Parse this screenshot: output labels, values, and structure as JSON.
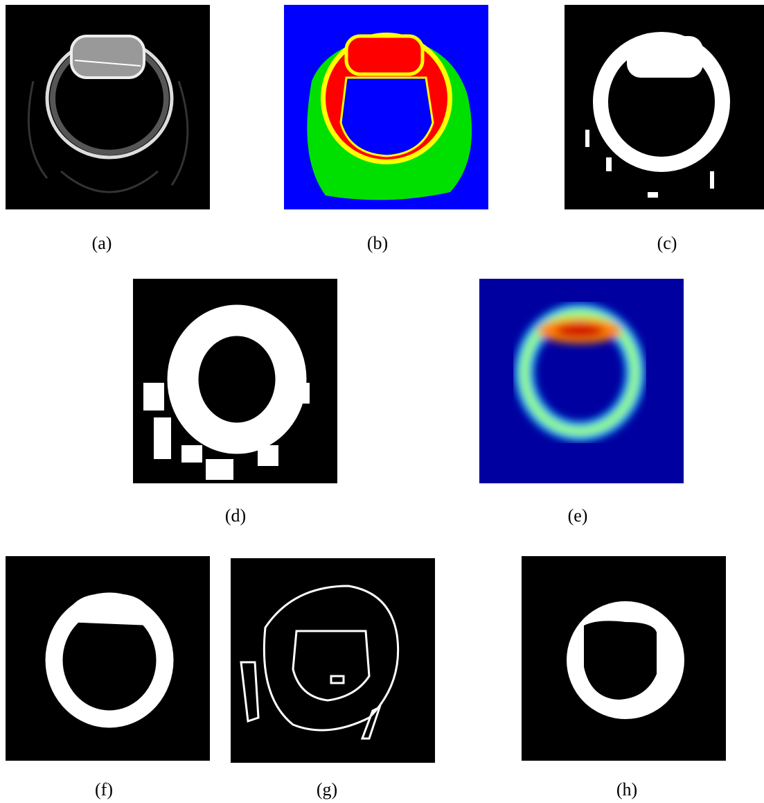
{
  "panels": [
    {
      "caption": "(a)"
    },
    {
      "caption": "(b)"
    },
    {
      "caption": "(c)"
    },
    {
      "caption": "(d)"
    },
    {
      "caption": "(e)"
    },
    {
      "caption": "(f)"
    },
    {
      "caption": "(g)"
    },
    {
      "caption": "(h)"
    }
  ]
}
